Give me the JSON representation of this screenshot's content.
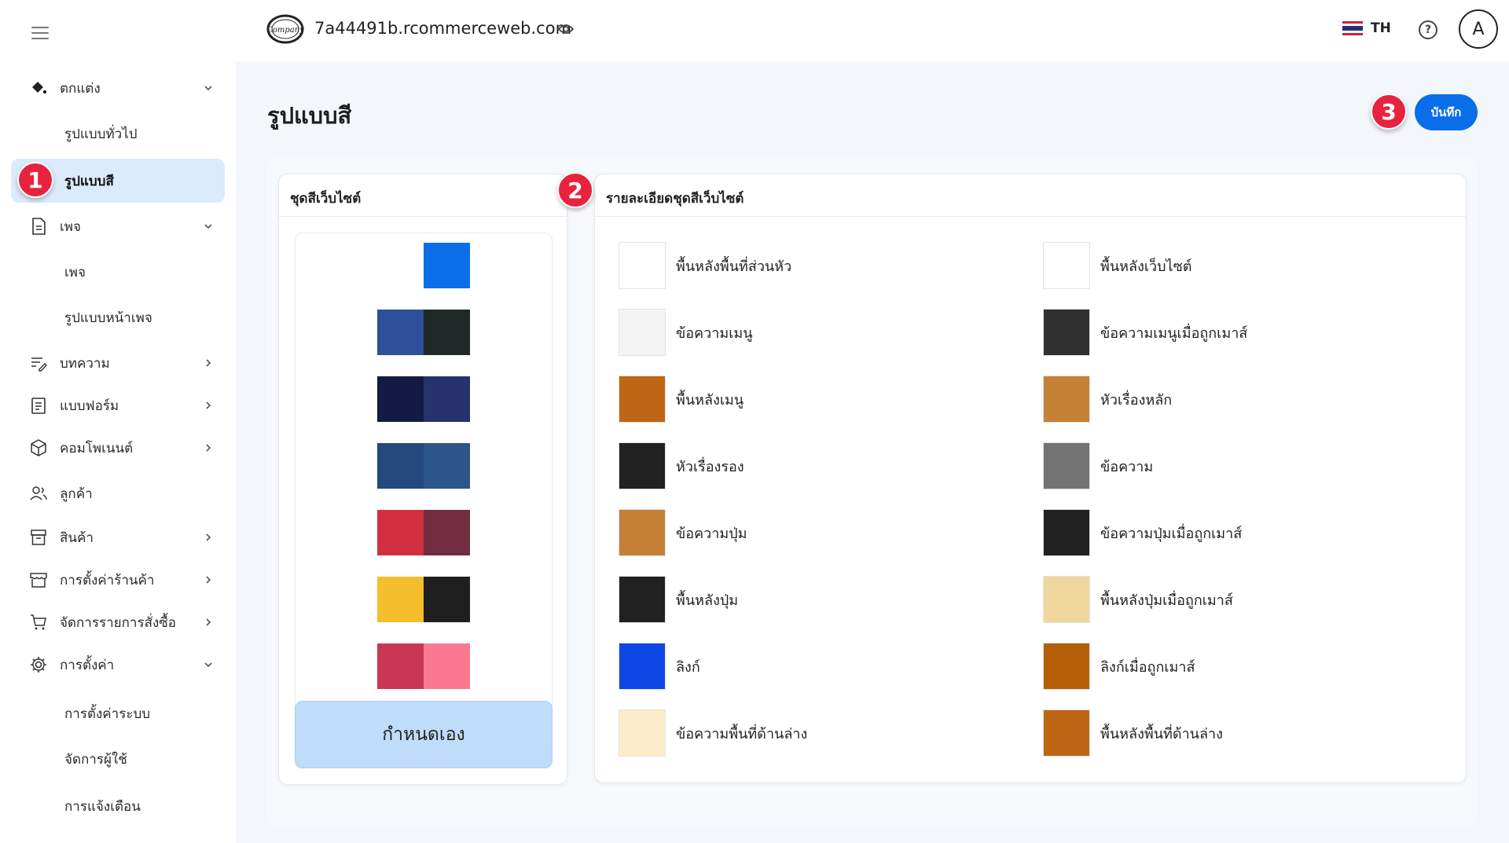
{
  "header": {
    "logo_text": "Company",
    "domain": "7a44491b.rcommerceweb.com",
    "language_code": "TH",
    "avatar_initial": "A",
    "help_label": "?"
  },
  "sidebar": {
    "items": [
      {
        "label": "ตกแต่ง",
        "icon": "paint-bucket-icon",
        "chevron": "down"
      },
      {
        "label": "รูปแบบทั่วไป",
        "sub": true
      },
      {
        "label": "รูปแบบสี",
        "sub": true,
        "active": true
      },
      {
        "label": "เพจ",
        "icon": "document-icon",
        "chevron": "down"
      },
      {
        "label": "เพจ",
        "sub": true
      },
      {
        "label": "รูปแบบหน้าเพจ",
        "sub": true
      },
      {
        "label": "บทความ",
        "icon": "article-edit-icon",
        "chevron": "right"
      },
      {
        "label": "แบบฟอร์ม",
        "icon": "form-icon",
        "chevron": "right"
      },
      {
        "label": "คอมโพเนนต์",
        "icon": "cube-icon",
        "chevron": "right"
      },
      {
        "label": "ลูกค้า",
        "icon": "users-icon"
      },
      {
        "label": "สินค้า",
        "icon": "box-icon",
        "chevron": "right"
      },
      {
        "label": "การตั้งค่าร้านค้า",
        "icon": "store-icon",
        "chevron": "right"
      },
      {
        "label": "จัดการรายการสั่งซื้อ",
        "icon": "cart-icon",
        "chevron": "right"
      },
      {
        "label": "การตั้งค่า",
        "icon": "gear-icon",
        "chevron": "down"
      },
      {
        "label": "การตั้งค่าระบบ",
        "sub": true
      },
      {
        "label": "จัดการผู้ใช้",
        "sub": true
      },
      {
        "label": "การแจ้งเตือน",
        "sub": true
      }
    ]
  },
  "badges": [
    "1",
    "2",
    "3"
  ],
  "main": {
    "title": "รูปแบบสี",
    "save_label": "บันทึก",
    "themes_panel": {
      "title": "ชุดสีเว็บไซต์",
      "themes": [
        {
          "colors": [
            "#ffffff",
            "#0a6ee8"
          ]
        },
        {
          "colors": [
            "#2f4f9a",
            "#1f2a28"
          ]
        },
        {
          "colors": [
            "#141a44",
            "#25326c"
          ]
        },
        {
          "colors": [
            "#24497c",
            "#2c5589"
          ]
        },
        {
          "colors": [
            "#d23040",
            "#712c40"
          ]
        },
        {
          "colors": [
            "#f4be2c",
            "#1f1f1f"
          ]
        },
        {
          "colors": [
            "#c83852",
            "#fb7990"
          ]
        }
      ],
      "custom_label": "กำหนดเอง"
    },
    "details_panel": {
      "title": "รายละเอียดชุดสีเว็บไซต์",
      "left_column": [
        {
          "label": "พื้นหลังพื้นที่ส่วนหัว",
          "color": "#ffffff"
        },
        {
          "label": "ข้อความเมนู",
          "color": "#f4f4f4"
        },
        {
          "label": "พื้นหลังเมนู",
          "color": "#bf6614"
        },
        {
          "label": "หัวเรื่องรอง",
          "color": "#212121"
        },
        {
          "label": "ข้อความปุ่ม",
          "color": "#c58037"
        },
        {
          "label": "พื้นหลังปุ่ม",
          "color": "#212121"
        },
        {
          "label": "ลิงก์",
          "color": "#0d47e5"
        },
        {
          "label": "ข้อความพื้นที่ด้านล่าง",
          "color": "#fcedca"
        }
      ],
      "right_column": [
        {
          "label": "พื้นหลังเว็บไซต์",
          "color": "#ffffff"
        },
        {
          "label": "ข้อความเมนูเมื่อถูกเมาส์",
          "color": "#303030"
        },
        {
          "label": "หัวเรื่องหลัก",
          "color": "#c58037"
        },
        {
          "label": "ข้อความ",
          "color": "#737373"
        },
        {
          "label": "ข้อความปุ่มเมื่อถูกเมาส์",
          "color": "#212121"
        },
        {
          "label": "พื้นหลังปุ่มเมื่อถูกเมาส์",
          "color": "#f0d79e"
        },
        {
          "label": "ลิงก์เมื่อถูกเมาส์",
          "color": "#b45f07"
        },
        {
          "label": "พื้นหลังพื้นที่ด้านล่าง",
          "color": "#bf6614"
        }
      ]
    }
  },
  "colors": {
    "accent": "#0a6ee8",
    "active_nav": "#dcebfb",
    "badge": "#e8233f",
    "custom_button": "#bfdcf8"
  }
}
